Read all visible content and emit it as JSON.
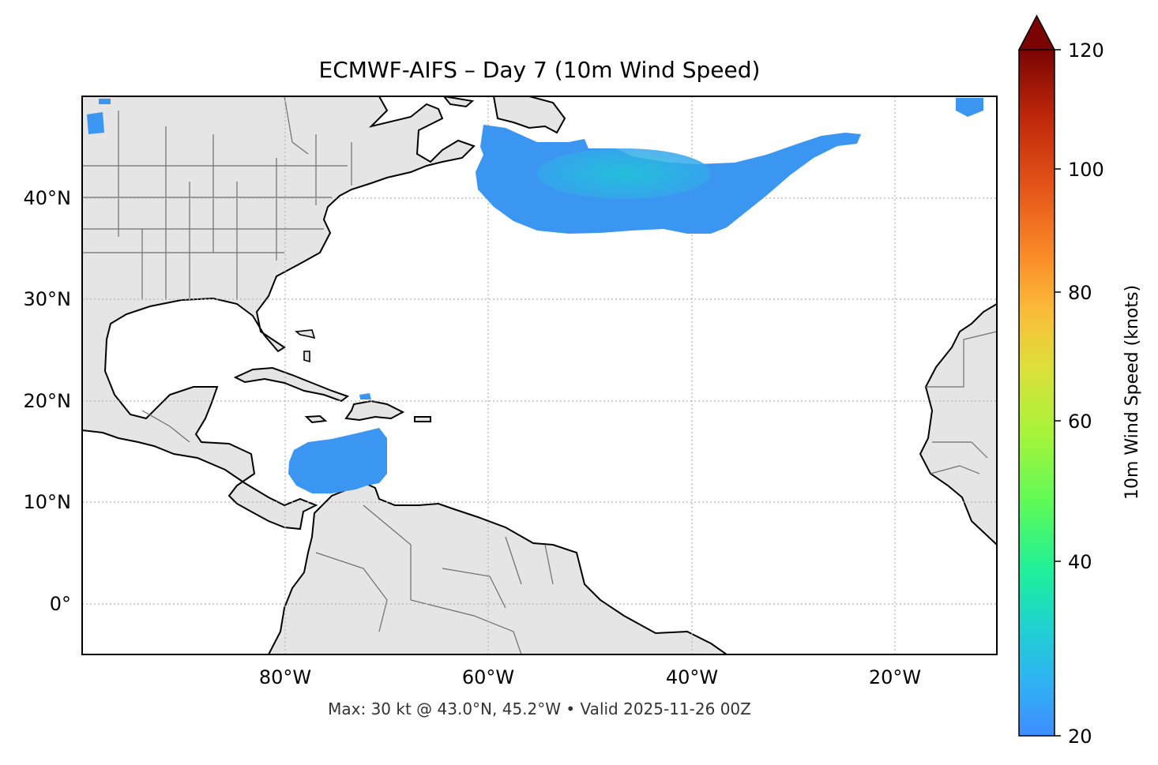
{
  "title": "ECMWF-AIFS – Day 7 (10m Wind Speed)",
  "footer": "Max: 30 kt @ 43.0°N, 45.2°W • Valid 2025-11-26 00Z",
  "map": {
    "lon_ticks": [
      "80°W",
      "60°W",
      "40°W",
      "20°W"
    ],
    "lat_ticks": [
      "40°N",
      "30°N",
      "20°N",
      "10°N",
      "0°"
    ],
    "land_color": "#e5e5e5",
    "coast_color": "#000000",
    "border_color": "#6e6e6e",
    "gridline_color": "#b5b5b5",
    "wind_region_color": "#3b96f2",
    "wind_core_color": "#1fc6d6"
  },
  "colorbar": {
    "label": "10m Wind Speed (knots)",
    "ticks": [
      "120",
      "100",
      "80",
      "60",
      "40",
      "20"
    ],
    "min": 20,
    "max": 120,
    "extend": "max"
  }
}
